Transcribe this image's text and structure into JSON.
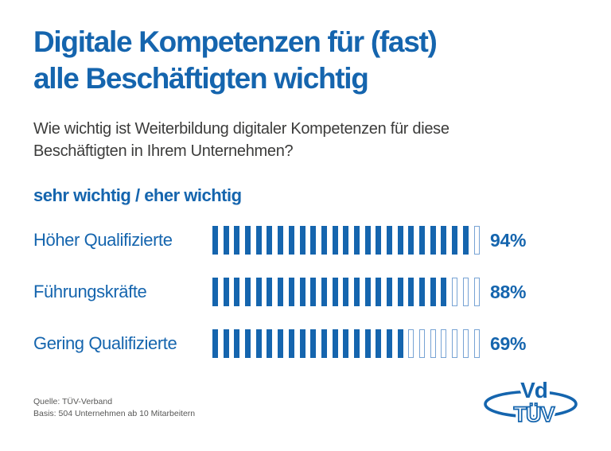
{
  "colors": {
    "accent": "#1565ae",
    "tick_empty_border": "#77a3d4",
    "question_text": "#3c3c3b",
    "footnote_text": "#575756",
    "background": "#ffffff"
  },
  "header": {
    "title_line1": "Digitale Kompetenzen für (fast)",
    "title_line2": "alle Beschäftigten wichtig",
    "question_line1": "Wie wichtig ist Weiterbildung digitaler Kompetenzen für diese",
    "question_line2": "Beschäftigten in Ihrem Unternehmen?",
    "answer_scale": "sehr wichtig / eher wichtig"
  },
  "chart_data": {
    "type": "bar",
    "style": "segmented-tick-bar",
    "title": "Digitale Kompetenzen für (fast) alle Beschäftigten wichtig",
    "subtitle": "Wie wichtig ist Weiterbildung digitaler Kompetenzen für diese Beschäftigten in Ihrem Unternehmen?",
    "legend": "sehr wichtig / eher wichtig",
    "categories": [
      "Höher Qualifizierte",
      "Führungskräfte",
      "Gering Qualifizierte"
    ],
    "values": [
      94,
      88,
      69
    ],
    "value_labels": [
      "94%",
      "88%",
      "69%"
    ],
    "unit": "percent",
    "xlim": [
      0,
      100
    ],
    "ticks_total": 25,
    "ticks_filled": [
      24,
      22,
      18
    ],
    "grid": false,
    "legend_position": "above-chart"
  },
  "footer": {
    "source": "Quelle: TÜV-Verband",
    "basis": "Basis: 504 Unternehmen ab 10 Mitarbeitern"
  },
  "logo": {
    "top_text": "Vd",
    "bottom_text": "TÜV"
  }
}
